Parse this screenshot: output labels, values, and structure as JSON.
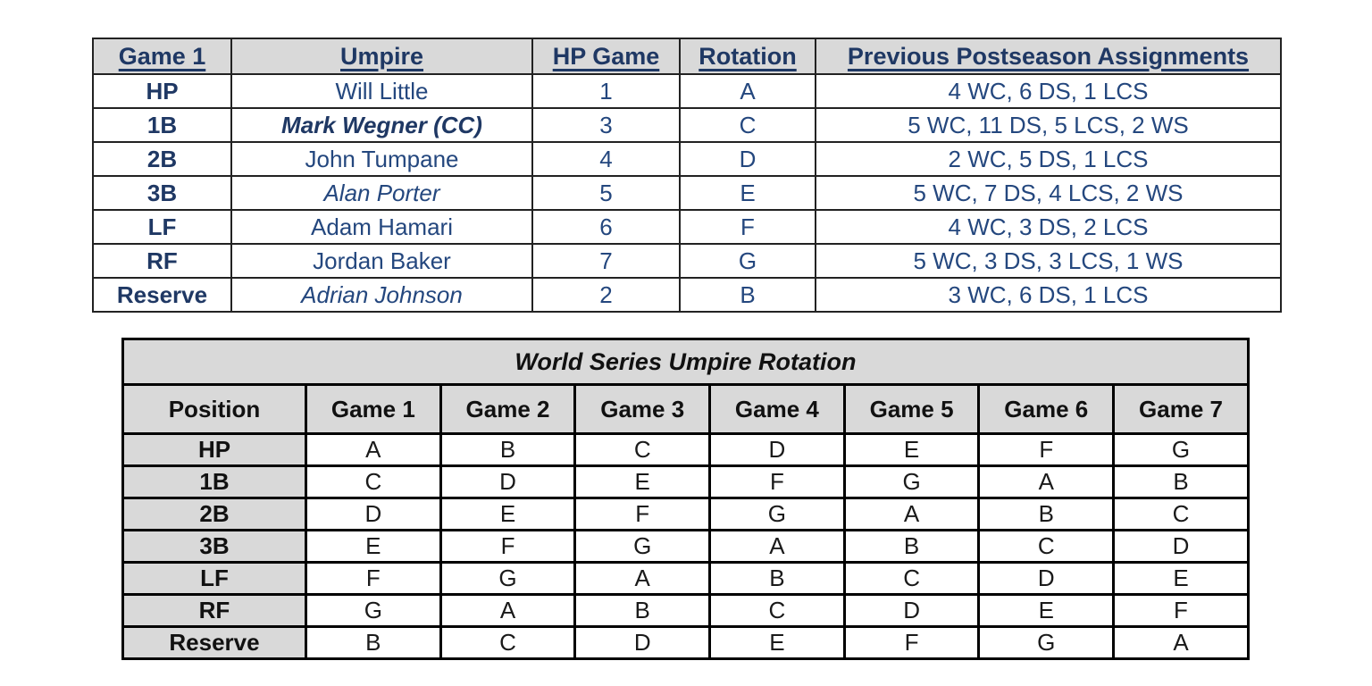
{
  "colors": {
    "navy_header": "#1f3864",
    "navy_body": "#24477e",
    "header_bg": "#d9d9d9",
    "black_text": "#1a1a1a",
    "border": "#000000"
  },
  "assignments_table": {
    "headers": [
      "Game 1",
      "Umpire",
      "HP Game",
      "Rotation",
      "Previous Postseason Assignments"
    ],
    "rows": [
      {
        "position": "HP",
        "umpire": "Will Little",
        "umpire_style": "regular",
        "hp_game": "1",
        "rotation": "A",
        "previous": "4 WC, 6 DS, 1 LCS"
      },
      {
        "position": "1B",
        "umpire": "Mark Wegner (CC)",
        "umpire_style": "bold-italic",
        "hp_game": "3",
        "rotation": "C",
        "previous": "5 WC, 11 DS, 5 LCS, 2 WS"
      },
      {
        "position": "2B",
        "umpire": "John Tumpane",
        "umpire_style": "regular",
        "hp_game": "4",
        "rotation": "D",
        "previous": "2 WC, 5 DS, 1 LCS"
      },
      {
        "position": "3B",
        "umpire": "Alan Porter",
        "umpire_style": "italic",
        "hp_game": "5",
        "rotation": "E",
        "previous": "5 WC, 7 DS, 4 LCS, 2 WS"
      },
      {
        "position": "LF",
        "umpire": "Adam Hamari",
        "umpire_style": "regular",
        "hp_game": "6",
        "rotation": "F",
        "previous": "4 WC, 3 DS, 2 LCS"
      },
      {
        "position": "RF",
        "umpire": "Jordan Baker",
        "umpire_style": "regular",
        "hp_game": "7",
        "rotation": "G",
        "previous": "5 WC, 3 DS, 3 LCS, 1 WS"
      },
      {
        "position": "Reserve",
        "umpire": "Adrian Johnson",
        "umpire_style": "italic",
        "hp_game": "2",
        "rotation": "B",
        "previous": "3 WC, 6 DS, 1 LCS"
      }
    ]
  },
  "rotation_table": {
    "title": "World Series Umpire Rotation",
    "headers": [
      "Position",
      "Game 1",
      "Game 2",
      "Game 3",
      "Game 4",
      "Game 5",
      "Game 6",
      "Game 7"
    ],
    "rows": [
      {
        "position": "HP",
        "letters": [
          "A",
          "B",
          "C",
          "D",
          "E",
          "F",
          "G"
        ]
      },
      {
        "position": "1B",
        "letters": [
          "C",
          "D",
          "E",
          "F",
          "G",
          "A",
          "B"
        ]
      },
      {
        "position": "2B",
        "letters": [
          "D",
          "E",
          "F",
          "G",
          "A",
          "B",
          "C"
        ]
      },
      {
        "position": "3B",
        "letters": [
          "E",
          "F",
          "G",
          "A",
          "B",
          "C",
          "D"
        ]
      },
      {
        "position": "LF",
        "letters": [
          "F",
          "G",
          "A",
          "B",
          "C",
          "D",
          "E"
        ]
      },
      {
        "position": "RF",
        "letters": [
          "G",
          "A",
          "B",
          "C",
          "D",
          "E",
          "F"
        ]
      },
      {
        "position": "Reserve",
        "letters": [
          "B",
          "C",
          "D",
          "E",
          "F",
          "G",
          "A"
        ]
      }
    ]
  }
}
